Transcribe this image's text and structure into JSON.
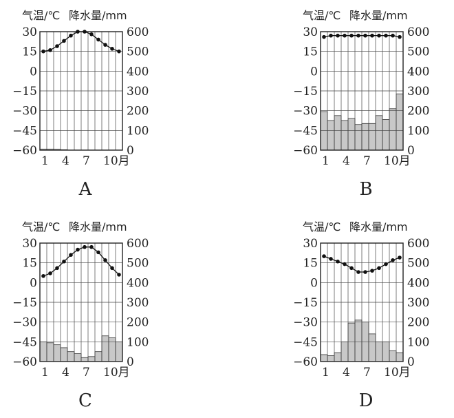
{
  "chart_data": [
    {
      "type": "bar+line",
      "title": "A",
      "ylabel_left": "气温/℃",
      "ylabel_right": "降水量/mm",
      "x_ticks": [
        "1",
        "4",
        "7",
        "10月"
      ],
      "y_left_ticks": [
        "30",
        "15",
        "0",
        "−15",
        "−30",
        "−45",
        "−60"
      ],
      "y_right_ticks": [
        "600",
        "500",
        "400",
        "300",
        "200",
        "100",
        "0"
      ],
      "ylim_left": [
        -60,
        30
      ],
      "ylim_right": [
        0,
        600
      ],
      "temperature": [
        15,
        16,
        19,
        23,
        27,
        30,
        30,
        28,
        24,
        20,
        17,
        15
      ],
      "precipitation": [
        5,
        5,
        4,
        2,
        0,
        0,
        0,
        0,
        0,
        0,
        0,
        0
      ],
      "grid": true
    },
    {
      "type": "bar+line",
      "title": "B",
      "ylabel_left": "气温/℃",
      "ylabel_right": "降水量/mm",
      "x_ticks": [
        "1",
        "4",
        "7",
        "10月"
      ],
      "y_left_ticks": [
        "30",
        "15",
        "0",
        "−15",
        "−30",
        "−45",
        "−60"
      ],
      "y_right_ticks": [
        "600",
        "500",
        "400",
        "300",
        "200",
        "100",
        "0"
      ],
      "ylim_left": [
        -60,
        30
      ],
      "ylim_right": [
        0,
        600
      ],
      "temperature": [
        26,
        27,
        27,
        27,
        27,
        27,
        27,
        27,
        27,
        27,
        27,
        26
      ],
      "precipitation": [
        195,
        150,
        175,
        150,
        160,
        130,
        135,
        135,
        175,
        155,
        210,
        285
      ],
      "grid": true
    },
    {
      "type": "bar+line",
      "title": "C",
      "ylabel_left": "气温/℃",
      "ylabel_right": "降水量/mm",
      "x_ticks": [
        "1",
        "4",
        "7",
        "10月"
      ],
      "y_left_ticks": [
        "30",
        "15",
        "0",
        "−15",
        "−30",
        "−45",
        "−60"
      ],
      "y_right_ticks": [
        "600",
        "500",
        "400",
        "300",
        "200",
        "100",
        "0"
      ],
      "ylim_left": [
        -60,
        30
      ],
      "ylim_right": [
        0,
        600
      ],
      "temperature": [
        5,
        7,
        11,
        16,
        21,
        25,
        27,
        27,
        23,
        17,
        11,
        6
      ],
      "precipitation": [
        100,
        95,
        85,
        70,
        50,
        40,
        20,
        25,
        50,
        130,
        120,
        100
      ],
      "grid": true
    },
    {
      "type": "bar+line",
      "title": "D",
      "ylabel_left": "气温/℃",
      "ylabel_right": "降水量/mm",
      "x_ticks": [
        "1",
        "4",
        "7",
        "10月"
      ],
      "y_left_ticks": [
        "30",
        "15",
        "0",
        "−15",
        "−30",
        "−45",
        "−60"
      ],
      "y_right_ticks": [
        "600",
        "500",
        "400",
        "300",
        "200",
        "100",
        "0"
      ],
      "ylim_left": [
        -60,
        30
      ],
      "ylim_right": [
        0,
        600
      ],
      "temperature": [
        20,
        18,
        16,
        14,
        11,
        8,
        8,
        9,
        11,
        14,
        17,
        19
      ],
      "precipitation": [
        35,
        30,
        45,
        100,
        195,
        210,
        200,
        140,
        100,
        100,
        55,
        45
      ],
      "grid": true
    }
  ]
}
